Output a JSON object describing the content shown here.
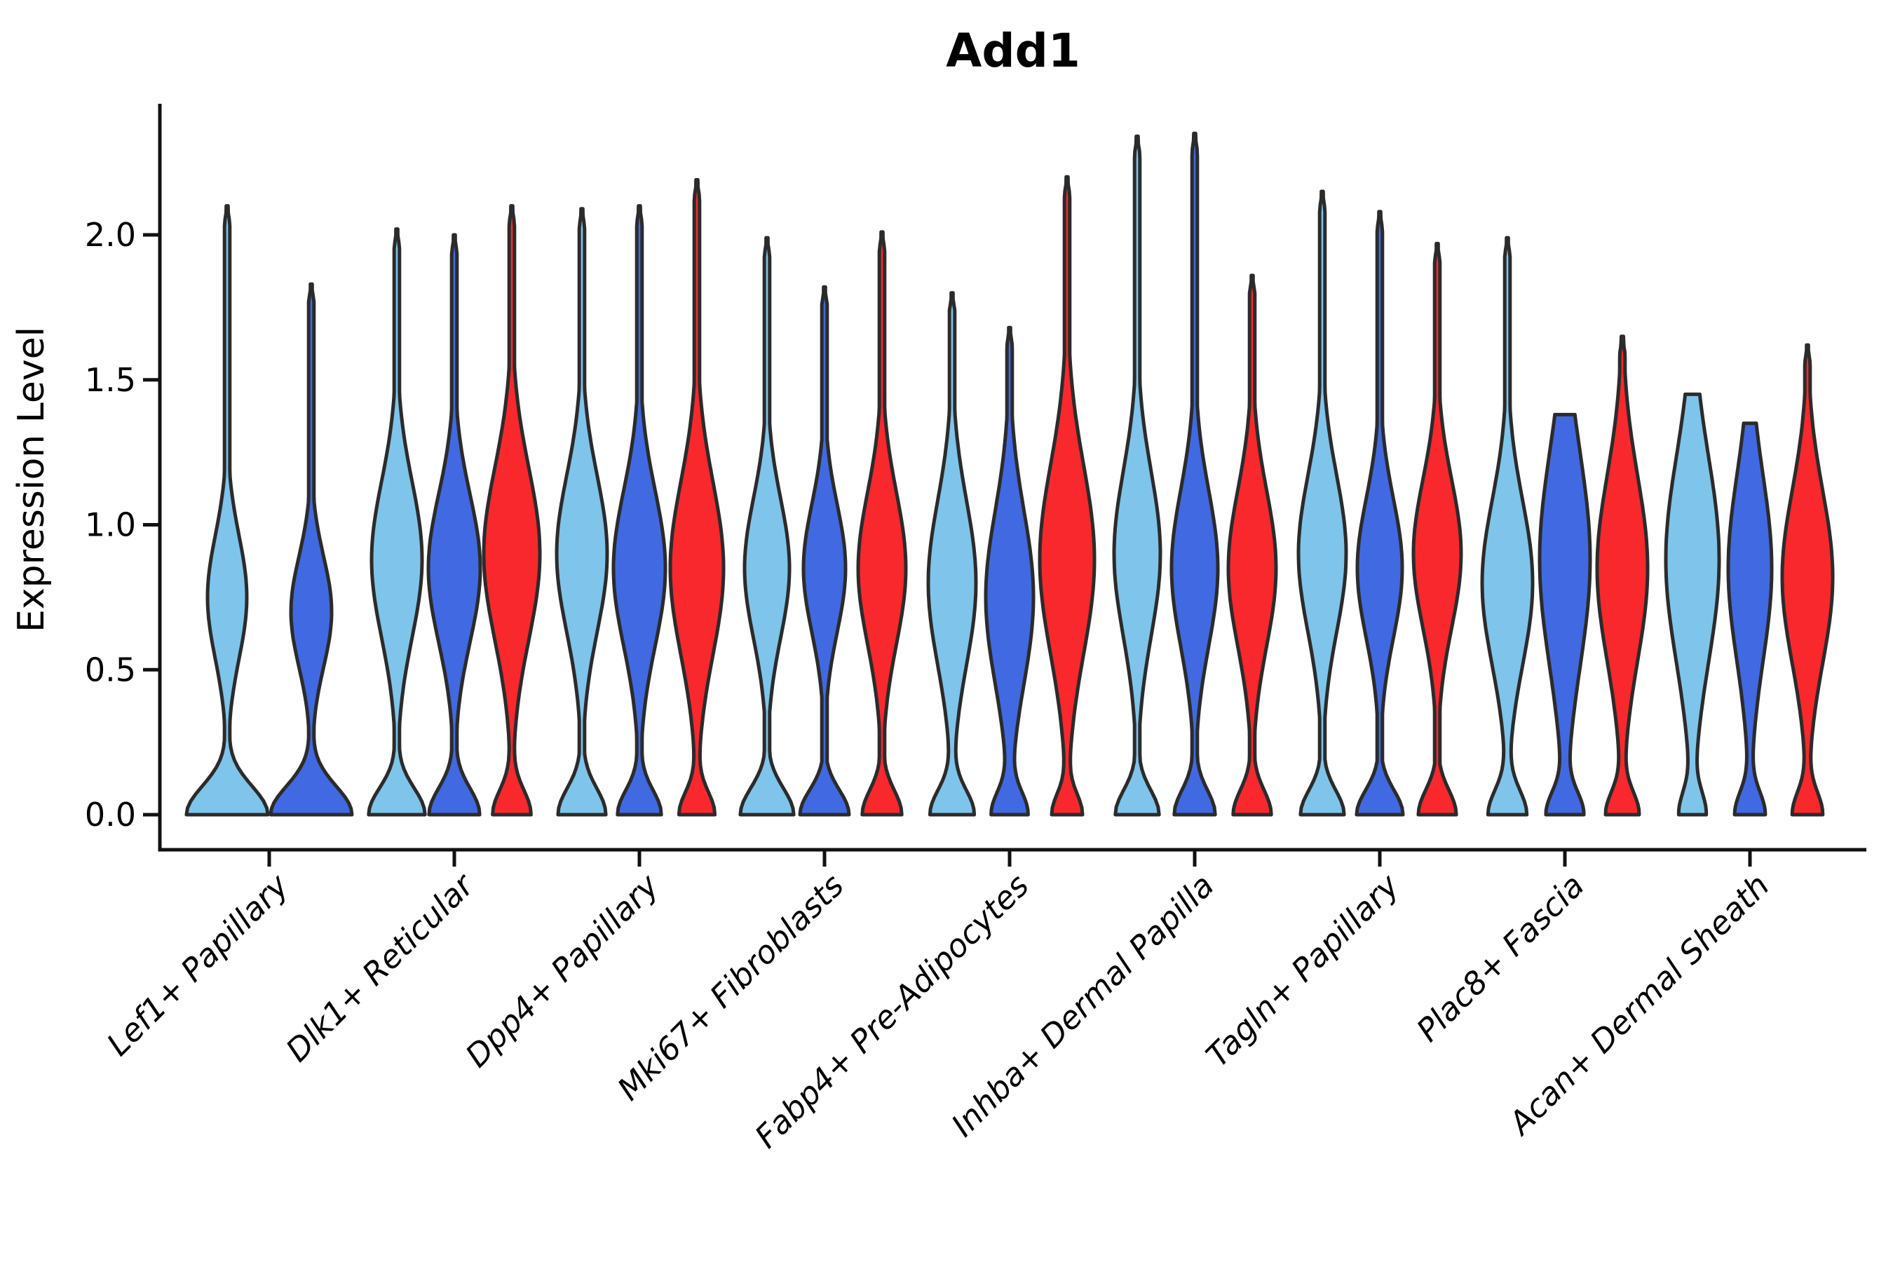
{
  "chart_data": {
    "type": "violin",
    "title": "Add1",
    "ylabel": "Expression Level",
    "xlabel": "",
    "yticks": [
      0.0,
      0.5,
      1.0,
      1.5,
      2.0
    ],
    "ylim": [
      -0.12,
      2.45
    ],
    "grid": false,
    "legend": "none",
    "categories": [
      "Lef1+ Papillary",
      "Dlk1+ Reticular",
      "Dpp4+ Papillary",
      "Mki67+ Fibroblasts",
      "Fabp4+ Pre-Adipocytes",
      "Inhba+ Dermal Papilla",
      "Tagln+ Papillary",
      "Plac8+ Fascia",
      "Acan+ Dermal Sheath"
    ],
    "series_names": [
      "skyblue",
      "royalblue",
      "red"
    ],
    "series_colors": {
      "skyblue": "#7FC4EA",
      "royalblue": "#4169E1",
      "red": "#F8282D"
    },
    "outline_color": "#2B2B2B",
    "axis_color": "#111111",
    "violins": [
      {
        "category": "Lef1+ Papillary",
        "values": [
          {
            "series": "skyblue",
            "max": 2.1,
            "mode": 0.75,
            "bulge_hw": 28,
            "bulge_sig": 0.3,
            "base_hw": 58,
            "base_sig": 0.14
          },
          {
            "series": "royalblue",
            "max": 1.83,
            "mode": 0.7,
            "bulge_hw": 29,
            "bulge_sig": 0.27,
            "base_hw": 58,
            "base_sig": 0.14
          }
        ]
      },
      {
        "category": "Dlk1+ Reticular",
        "values": [
          {
            "series": "skyblue",
            "max": 2.02,
            "mode": 0.88,
            "bulge_hw": 36,
            "bulge_sig": 0.38,
            "base_hw": 40,
            "base_sig": 0.13
          },
          {
            "series": "royalblue",
            "max": 2.0,
            "mode": 0.85,
            "bulge_hw": 37,
            "bulge_sig": 0.36,
            "base_hw": 36,
            "base_sig": 0.13
          },
          {
            "series": "red",
            "max": 2.1,
            "mode": 0.9,
            "bulge_hw": 40,
            "bulge_sig": 0.42,
            "base_hw": 27,
            "base_sig": 0.12
          }
        ]
      },
      {
        "category": "Dpp4+ Papillary",
        "values": [
          {
            "series": "skyblue",
            "max": 2.09,
            "mode": 0.9,
            "bulge_hw": 36,
            "bulge_sig": 0.38,
            "base_hw": 34,
            "base_sig": 0.13
          },
          {
            "series": "royalblue",
            "max": 2.1,
            "mode": 0.85,
            "bulge_hw": 37,
            "bulge_sig": 0.38,
            "base_hw": 31,
            "base_sig": 0.12
          },
          {
            "series": "red",
            "max": 2.19,
            "mode": 0.85,
            "bulge_hw": 38,
            "bulge_sig": 0.42,
            "base_hw": 25,
            "base_sig": 0.11
          }
        ]
      },
      {
        "category": "Mki67+ Fibroblasts",
        "values": [
          {
            "series": "skyblue",
            "max": 1.99,
            "mode": 0.85,
            "bulge_hw": 32,
            "bulge_sig": 0.34,
            "base_hw": 38,
            "base_sig": 0.13
          },
          {
            "series": "royalblue",
            "max": 1.82,
            "mode": 0.85,
            "bulge_hw": 30,
            "bulge_sig": 0.31,
            "base_hw": 35,
            "base_sig": 0.12
          },
          {
            "series": "red",
            "max": 2.01,
            "mode": 0.85,
            "bulge_hw": 34,
            "bulge_sig": 0.37,
            "base_hw": 28,
            "base_sig": 0.12
          }
        ]
      },
      {
        "category": "Fabp4+ Pre-Adipocytes",
        "values": [
          {
            "series": "skyblue",
            "max": 1.8,
            "mode": 0.8,
            "bulge_hw": 34,
            "bulge_sig": 0.4,
            "base_hw": 31,
            "base_sig": 0.12
          },
          {
            "series": "royalblue",
            "max": 1.68,
            "mode": 0.75,
            "bulge_hw": 34,
            "bulge_sig": 0.42,
            "base_hw": 25,
            "base_sig": 0.11
          },
          {
            "series": "red",
            "max": 2.2,
            "mode": 0.88,
            "bulge_hw": 39,
            "bulge_sig": 0.46,
            "base_hw": 21,
            "base_sig": 0.1
          }
        ]
      },
      {
        "category": "Inhba+ Dermal Papilla",
        "values": [
          {
            "series": "skyblue",
            "max": 2.34,
            "mode": 0.9,
            "bulge_hw": 33,
            "bulge_sig": 0.4,
            "base_hw": 31,
            "base_sig": 0.12
          },
          {
            "series": "royalblue",
            "max": 2.35,
            "mode": 0.85,
            "bulge_hw": 33,
            "bulge_sig": 0.38,
            "base_hw": 29,
            "base_sig": 0.12
          },
          {
            "series": "red",
            "max": 1.86,
            "mode": 0.85,
            "bulge_hw": 34,
            "bulge_sig": 0.38,
            "base_hw": 27,
            "base_sig": 0.12
          }
        ]
      },
      {
        "category": "Tagln+ Papillary",
        "values": [
          {
            "series": "skyblue",
            "max": 2.15,
            "mode": 0.9,
            "bulge_hw": 34,
            "bulge_sig": 0.38,
            "base_hw": 31,
            "base_sig": 0.12
          },
          {
            "series": "royalblue",
            "max": 2.08,
            "mode": 0.85,
            "bulge_hw": 32,
            "bulge_sig": 0.34,
            "base_hw": 33,
            "base_sig": 0.12
          },
          {
            "series": "red",
            "max": 1.97,
            "mode": 0.9,
            "bulge_hw": 34,
            "bulge_sig": 0.36,
            "base_hw": 27,
            "base_sig": 0.12
          }
        ]
      },
      {
        "category": "Plac8+ Fascia",
        "values": [
          {
            "series": "skyblue",
            "max": 1.99,
            "mode": 0.8,
            "bulge_hw": 36,
            "bulge_sig": 0.4,
            "base_hw": 27,
            "base_sig": 0.12
          },
          {
            "series": "royalblue",
            "max": 1.38,
            "mode": 0.88,
            "bulge_hw": 36,
            "bulge_sig": 0.52,
            "base_hw": 25,
            "base_sig": 0.11
          },
          {
            "series": "red",
            "max": 1.65,
            "mode": 0.85,
            "bulge_hw": 36,
            "bulge_sig": 0.45,
            "base_hw": 23,
            "base_sig": 0.11
          }
        ]
      },
      {
        "category": "Acan+ Dermal Sheath",
        "values": [
          {
            "series": "skyblue",
            "max": 1.45,
            "mode": 0.88,
            "bulge_hw": 38,
            "bulge_sig": 0.5,
            "base_hw": 18,
            "base_sig": 0.11
          },
          {
            "series": "royalblue",
            "max": 1.35,
            "mode": 0.85,
            "bulge_hw": 31,
            "bulge_sig": 0.45,
            "base_hw": 21,
            "base_sig": 0.11
          },
          {
            "series": "red",
            "max": 1.62,
            "mode": 0.82,
            "bulge_hw": 36,
            "bulge_sig": 0.42,
            "base_hw": 21,
            "base_sig": 0.11
          }
        ]
      }
    ]
  }
}
